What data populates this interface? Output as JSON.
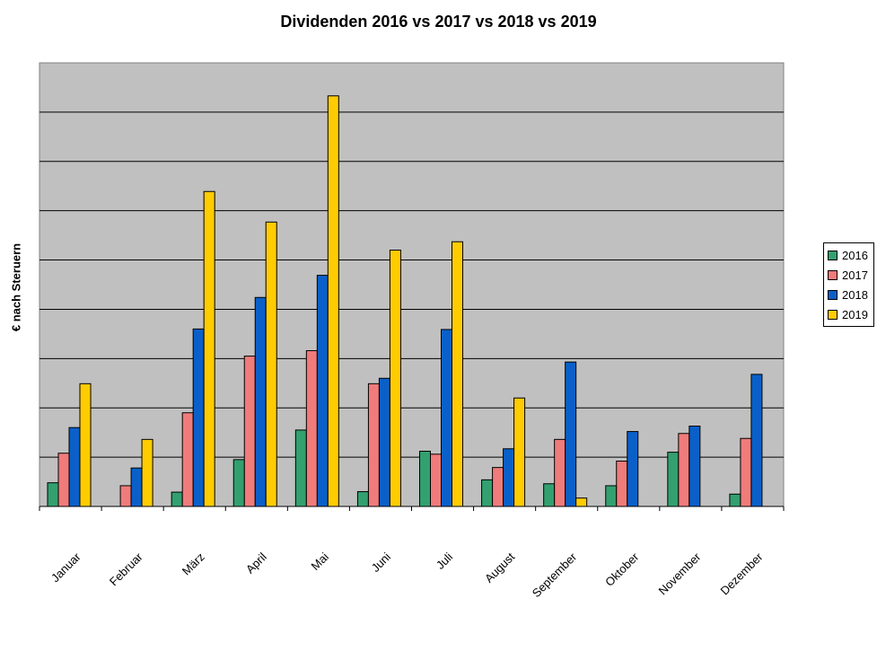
{
  "chart_data": {
    "type": "bar",
    "title": "Dividenden 2016 vs 2017 vs 2018 vs 2019",
    "xlabel": "",
    "ylabel": "€ nach Steruern",
    "categories": [
      "Januar",
      "Februar",
      "März",
      "April",
      "Mai",
      "Juni",
      "Juli",
      "August",
      "September",
      "Oktober",
      "November",
      "Dezember"
    ],
    "ylim": [
      0,
      9
    ],
    "grid": true,
    "legend_position": "right",
    "series": [
      {
        "name": "2016",
        "color": "#33a070",
        "values": [
          0.48,
          0,
          0.29,
          0.95,
          1.55,
          0.3,
          1.12,
          0.54,
          0.46,
          0.42,
          1.1,
          0.25
        ]
      },
      {
        "name": "2017",
        "color": "#f07b7b",
        "values": [
          1.08,
          0.42,
          1.9,
          3.05,
          3.16,
          2.49,
          1.06,
          0.79,
          1.36,
          0.92,
          1.48,
          1.38
        ]
      },
      {
        "name": "2018",
        "color": "#0a60c8",
        "values": [
          1.6,
          0.78,
          3.6,
          4.24,
          4.69,
          2.6,
          3.59,
          1.17,
          2.93,
          1.52,
          1.63,
          2.68
        ]
      },
      {
        "name": "2019",
        "color": "#ffcc00",
        "values": [
          2.49,
          1.36,
          6.39,
          5.77,
          8.33,
          5.2,
          5.37,
          2.2,
          0.17,
          0,
          0,
          0
        ]
      }
    ]
  }
}
